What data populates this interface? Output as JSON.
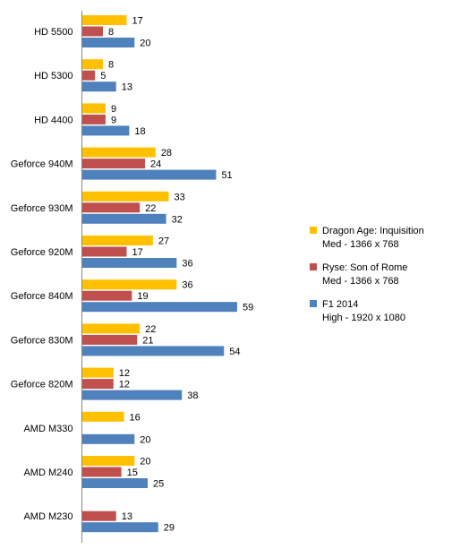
{
  "chart_data": {
    "type": "bar",
    "orientation": "horizontal",
    "categories": [
      "HD 5500",
      "HD 5300",
      "HD 4400",
      "Geforce 940M",
      "Geforce 930M",
      "Geforce 920M",
      "Geforce 840M",
      "Geforce 830M",
      "Geforce 820M",
      "AMD M330",
      "AMD M240",
      "AMD M230"
    ],
    "series": [
      {
        "name": "Dragon Age: Inquisition",
        "detail": "Med - 1366 x 768",
        "color": "#FFC000",
        "values": [
          17,
          8,
          9,
          28,
          33,
          27,
          36,
          22,
          12,
          16,
          20,
          null
        ]
      },
      {
        "name": "Ryse: Son of Rome",
        "detail": "Med - 1366 x 768",
        "color": "#C0504D",
        "values": [
          8,
          5,
          9,
          24,
          22,
          17,
          19,
          21,
          12,
          null,
          15,
          13
        ]
      },
      {
        "name": "F1 2014",
        "detail": "High - 1920 x 1080",
        "color": "#4F81BD",
        "values": [
          20,
          13,
          18,
          51,
          32,
          36,
          59,
          54,
          38,
          20,
          25,
          29
        ]
      }
    ],
    "xlim": [
      0,
      60
    ],
    "xlabel": "",
    "ylabel": "",
    "title": "",
    "grid": false,
    "legend": "right"
  }
}
